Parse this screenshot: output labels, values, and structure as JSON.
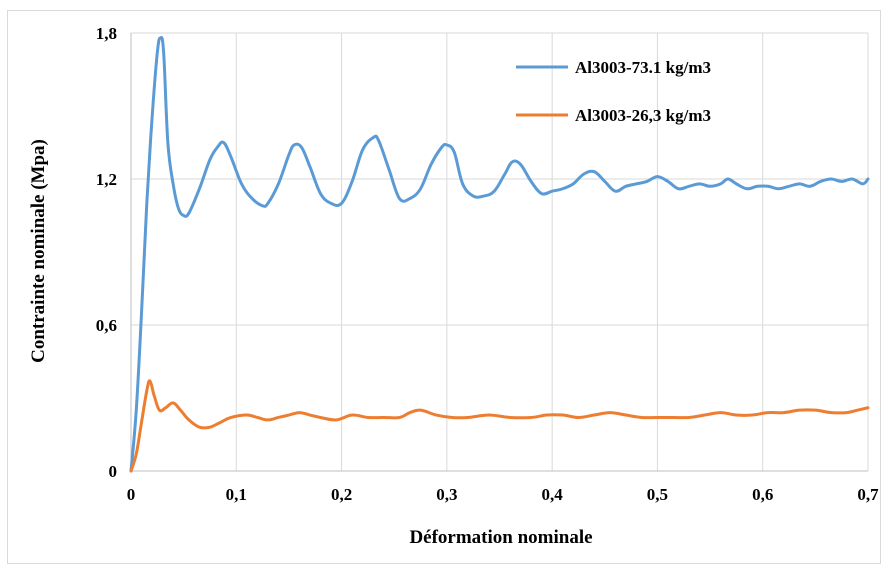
{
  "chart_data": {
    "type": "line",
    "xlabel": "Déformation nominale",
    "ylabel": "Contrainte nominale (Mpa)",
    "xlim": [
      0,
      0.7
    ],
    "ylim": [
      0,
      1.8
    ],
    "x_ticks": [
      0,
      0.1,
      0.2,
      0.3,
      0.4,
      0.5,
      0.6,
      0.7
    ],
    "x_tick_labels": [
      "0",
      "0,1",
      "0,2",
      "0,3",
      "0,4",
      "0,5",
      "0,6",
      "0,7"
    ],
    "y_ticks": [
      0,
      0.6,
      1.2,
      1.8
    ],
    "y_tick_labels": [
      "0",
      "0,6",
      "1,2",
      "1,8"
    ],
    "grid": true,
    "legend_position": "top-right",
    "series": [
      {
        "name": "Al3003-73.1 kg/m3",
        "color": "#5b9bd5",
        "points": [
          [
            0,
            0
          ],
          [
            0.005,
            0.25
          ],
          [
            0.01,
            0.65
          ],
          [
            0.015,
            1.1
          ],
          [
            0.02,
            1.45
          ],
          [
            0.025,
            1.72
          ],
          [
            0.028,
            1.78
          ],
          [
            0.031,
            1.72
          ],
          [
            0.035,
            1.35
          ],
          [
            0.04,
            1.18
          ],
          [
            0.045,
            1.08
          ],
          [
            0.05,
            1.05
          ],
          [
            0.055,
            1.06
          ],
          [
            0.065,
            1.16
          ],
          [
            0.075,
            1.28
          ],
          [
            0.082,
            1.33
          ],
          [
            0.088,
            1.35
          ],
          [
            0.095,
            1.29
          ],
          [
            0.105,
            1.18
          ],
          [
            0.115,
            1.12
          ],
          [
            0.125,
            1.09
          ],
          [
            0.13,
            1.1
          ],
          [
            0.14,
            1.18
          ],
          [
            0.15,
            1.3
          ],
          [
            0.155,
            1.34
          ],
          [
            0.162,
            1.33
          ],
          [
            0.17,
            1.25
          ],
          [
            0.18,
            1.14
          ],
          [
            0.19,
            1.1
          ],
          [
            0.2,
            1.1
          ],
          [
            0.21,
            1.19
          ],
          [
            0.22,
            1.32
          ],
          [
            0.23,
            1.37
          ],
          [
            0.235,
            1.36
          ],
          [
            0.245,
            1.24
          ],
          [
            0.255,
            1.12
          ],
          [
            0.265,
            1.12
          ],
          [
            0.275,
            1.16
          ],
          [
            0.285,
            1.26
          ],
          [
            0.295,
            1.33
          ],
          [
            0.3,
            1.34
          ],
          [
            0.307,
            1.31
          ],
          [
            0.315,
            1.18
          ],
          [
            0.325,
            1.13
          ],
          [
            0.335,
            1.13
          ],
          [
            0.345,
            1.15
          ],
          [
            0.355,
            1.22
          ],
          [
            0.362,
            1.27
          ],
          [
            0.37,
            1.26
          ],
          [
            0.38,
            1.19
          ],
          [
            0.39,
            1.14
          ],
          [
            0.4,
            1.15
          ],
          [
            0.41,
            1.16
          ],
          [
            0.42,
            1.18
          ],
          [
            0.43,
            1.22
          ],
          [
            0.44,
            1.23
          ],
          [
            0.45,
            1.19
          ],
          [
            0.46,
            1.15
          ],
          [
            0.47,
            1.17
          ],
          [
            0.48,
            1.18
          ],
          [
            0.49,
            1.19
          ],
          [
            0.5,
            1.21
          ],
          [
            0.51,
            1.19
          ],
          [
            0.52,
            1.16
          ],
          [
            0.53,
            1.17
          ],
          [
            0.54,
            1.18
          ],
          [
            0.55,
            1.17
          ],
          [
            0.56,
            1.18
          ],
          [
            0.567,
            1.2
          ],
          [
            0.575,
            1.18
          ],
          [
            0.585,
            1.16
          ],
          [
            0.595,
            1.17
          ],
          [
            0.605,
            1.17
          ],
          [
            0.615,
            1.16
          ],
          [
            0.625,
            1.17
          ],
          [
            0.635,
            1.18
          ],
          [
            0.645,
            1.17
          ],
          [
            0.655,
            1.19
          ],
          [
            0.665,
            1.2
          ],
          [
            0.675,
            1.19
          ],
          [
            0.685,
            1.2
          ],
          [
            0.695,
            1.18
          ],
          [
            0.7,
            1.2
          ]
        ]
      },
      {
        "name": "Al3003-26,3 kg/m3",
        "color": "#ed7d31",
        "points": [
          [
            0,
            0
          ],
          [
            0.005,
            0.07
          ],
          [
            0.01,
            0.2
          ],
          [
            0.015,
            0.33
          ],
          [
            0.018,
            0.37
          ],
          [
            0.022,
            0.31
          ],
          [
            0.027,
            0.25
          ],
          [
            0.033,
            0.26
          ],
          [
            0.04,
            0.28
          ],
          [
            0.047,
            0.25
          ],
          [
            0.055,
            0.21
          ],
          [
            0.065,
            0.18
          ],
          [
            0.075,
            0.18
          ],
          [
            0.085,
            0.2
          ],
          [
            0.095,
            0.22
          ],
          [
            0.11,
            0.23
          ],
          [
            0.12,
            0.22
          ],
          [
            0.13,
            0.21
          ],
          [
            0.14,
            0.22
          ],
          [
            0.15,
            0.23
          ],
          [
            0.16,
            0.24
          ],
          [
            0.17,
            0.23
          ],
          [
            0.18,
            0.22
          ],
          [
            0.195,
            0.21
          ],
          [
            0.21,
            0.23
          ],
          [
            0.225,
            0.22
          ],
          [
            0.24,
            0.22
          ],
          [
            0.255,
            0.22
          ],
          [
            0.265,
            0.24
          ],
          [
            0.275,
            0.25
          ],
          [
            0.29,
            0.23
          ],
          [
            0.305,
            0.22
          ],
          [
            0.32,
            0.22
          ],
          [
            0.34,
            0.23
          ],
          [
            0.36,
            0.22
          ],
          [
            0.38,
            0.22
          ],
          [
            0.395,
            0.23
          ],
          [
            0.41,
            0.23
          ],
          [
            0.425,
            0.22
          ],
          [
            0.44,
            0.23
          ],
          [
            0.455,
            0.24
          ],
          [
            0.47,
            0.23
          ],
          [
            0.485,
            0.22
          ],
          [
            0.5,
            0.22
          ],
          [
            0.515,
            0.22
          ],
          [
            0.53,
            0.22
          ],
          [
            0.545,
            0.23
          ],
          [
            0.56,
            0.24
          ],
          [
            0.575,
            0.23
          ],
          [
            0.59,
            0.23
          ],
          [
            0.605,
            0.24
          ],
          [
            0.62,
            0.24
          ],
          [
            0.635,
            0.25
          ],
          [
            0.65,
            0.25
          ],
          [
            0.665,
            0.24
          ],
          [
            0.68,
            0.24
          ],
          [
            0.69,
            0.25
          ],
          [
            0.7,
            0.26
          ]
        ]
      }
    ]
  }
}
